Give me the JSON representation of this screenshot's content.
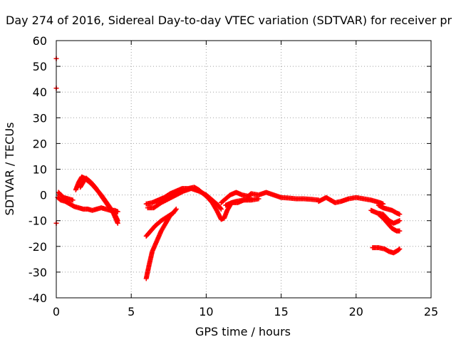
{
  "chart_data": {
    "type": "scatter",
    "title": "Day 274 of 2016, Sidereal Day-to-day VTEC variation (SDTVAR) for receiver pr",
    "xlabel": "GPS time / hours",
    "ylabel": "SDTVAR / TECUs",
    "xlim": [
      0,
      25
    ],
    "ylim": [
      -40,
      60
    ],
    "xticks": [
      0,
      5,
      10,
      15,
      20,
      25
    ],
    "yticks": [
      -40,
      -30,
      -20,
      -10,
      0,
      10,
      20,
      30,
      40,
      50,
      60
    ],
    "grid": true,
    "marker": "+",
    "series_color": "#ff0000",
    "series": [
      {
        "name": "isolated",
        "points": [
          [
            0.0,
            53
          ],
          [
            0.0,
            41.5
          ],
          [
            0.0,
            -11
          ]
        ]
      },
      {
        "name": "seg_a",
        "points": [
          [
            0.1,
            -1
          ],
          [
            0.3,
            -2
          ],
          [
            0.6,
            -2.5
          ],
          [
            0.9,
            -3.5
          ],
          [
            1.2,
            -4.5
          ],
          [
            1.5,
            -5
          ],
          [
            1.8,
            -5.5
          ],
          [
            2.1,
            -5.5
          ],
          [
            2.4,
            -6
          ],
          [
            2.7,
            -5.5
          ],
          [
            3.0,
            -5
          ],
          [
            3.3,
            -5.5
          ],
          [
            3.6,
            -6
          ],
          [
            3.9,
            -6
          ],
          [
            4.1,
            -6.5
          ]
        ]
      },
      {
        "name": "seg_b",
        "points": [
          [
            0.15,
            1
          ],
          [
            0.3,
            0
          ],
          [
            0.5,
            -1
          ],
          [
            0.8,
            -1.5
          ],
          [
            1.1,
            -2
          ]
        ]
      },
      {
        "name": "seg_c",
        "points": [
          [
            1.3,
            2
          ],
          [
            1.5,
            5
          ],
          [
            1.7,
            7
          ],
          [
            1.9,
            6.5
          ],
          [
            2.1,
            5.5
          ],
          [
            2.4,
            4
          ],
          [
            2.7,
            2
          ],
          [
            3.0,
            0
          ],
          [
            3.3,
            -2.5
          ],
          [
            3.6,
            -5
          ],
          [
            3.9,
            -7.5
          ],
          [
            4.1,
            -10
          ]
        ]
      },
      {
        "name": "seg_d",
        "points": [
          [
            1.6,
            3
          ],
          [
            1.8,
            5
          ],
          [
            2.0,
            6.5
          ],
          [
            2.3,
            5
          ],
          [
            2.6,
            3
          ],
          [
            2.9,
            0.5
          ],
          [
            3.2,
            -2
          ],
          [
            3.5,
            -4.5
          ],
          [
            3.8,
            -7
          ],
          [
            4.1,
            -11
          ]
        ]
      },
      {
        "name": "seg_e",
        "points": [
          [
            6.0,
            -3.5
          ],
          [
            6.4,
            -3
          ],
          [
            6.8,
            -2
          ],
          [
            7.2,
            -1
          ],
          [
            7.6,
            0.5
          ],
          [
            8.0,
            1.5
          ],
          [
            8.4,
            2.5
          ],
          [
            8.8,
            2.5
          ],
          [
            9.2,
            3
          ],
          [
            9.5,
            2
          ],
          [
            9.8,
            0.5
          ],
          [
            10.1,
            -1
          ],
          [
            10.4,
            -3
          ],
          [
            10.7,
            -6
          ],
          [
            11.0,
            -9.5
          ],
          [
            11.2,
            -9
          ],
          [
            11.4,
            -6
          ],
          [
            11.7,
            -3
          ],
          [
            12.0,
            -2.5
          ],
          [
            12.5,
            -2
          ],
          [
            13.0,
            -1.5
          ]
        ]
      },
      {
        "name": "seg_f",
        "points": [
          [
            6.0,
            -16
          ],
          [
            6.3,
            -14
          ],
          [
            6.6,
            -12
          ],
          [
            7.0,
            -10
          ],
          [
            7.4,
            -8.5
          ],
          [
            7.8,
            -7
          ],
          [
            8.0,
            -5.5
          ]
        ]
      },
      {
        "name": "seg_g",
        "points": [
          [
            6.0,
            -32.5
          ],
          [
            6.2,
            -27
          ],
          [
            6.4,
            -22
          ],
          [
            6.7,
            -18
          ],
          [
            7.0,
            -14
          ],
          [
            7.3,
            -11
          ],
          [
            7.6,
            -8
          ],
          [
            7.8,
            -7
          ]
        ]
      },
      {
        "name": "seg_h",
        "points": [
          [
            6.1,
            -5
          ],
          [
            6.5,
            -5
          ],
          [
            7.0,
            -3
          ],
          [
            7.5,
            -1.5
          ],
          [
            8.0,
            0
          ],
          [
            8.5,
            1.5
          ],
          [
            9.0,
            2.5
          ],
          [
            9.5,
            1.5
          ],
          [
            10.0,
            0
          ],
          [
            10.4,
            -2
          ],
          [
            10.8,
            -4
          ],
          [
            11.0,
            -5.5
          ]
        ]
      },
      {
        "name": "seg_i",
        "points": [
          [
            11.0,
            -3
          ],
          [
            11.3,
            -1.5
          ],
          [
            11.6,
            0
          ],
          [
            12.0,
            1
          ],
          [
            12.4,
            0
          ],
          [
            12.8,
            -0.5
          ],
          [
            13.0,
            0.5
          ],
          [
            13.5,
            0
          ],
          [
            14.0,
            1
          ],
          [
            14.5,
            0
          ],
          [
            15.0,
            -1
          ],
          [
            15.5,
            -1.2
          ],
          [
            16.0,
            -1.5
          ],
          [
            16.5,
            -1.5
          ],
          [
            17.0,
            -1.7
          ],
          [
            17.5,
            -2
          ]
        ]
      },
      {
        "name": "seg_j",
        "points": [
          [
            11.3,
            -4
          ],
          [
            11.7,
            -3
          ],
          [
            12.1,
            -3
          ],
          [
            12.5,
            -2
          ],
          [
            13.0,
            -2
          ],
          [
            13.5,
            -1.5
          ]
        ]
      },
      {
        "name": "seg_k",
        "points": [
          [
            17.5,
            -2.5
          ],
          [
            18.0,
            -1
          ],
          [
            18.3,
            -2
          ],
          [
            18.6,
            -3
          ],
          [
            19.0,
            -2.5
          ],
          [
            19.5,
            -1.5
          ],
          [
            20.0,
            -1
          ],
          [
            20.5,
            -1.5
          ],
          [
            21.0,
            -2
          ],
          [
            21.3,
            -2.5
          ],
          [
            21.6,
            -3
          ],
          [
            21.8,
            -3.5
          ]
        ]
      },
      {
        "name": "seg_l",
        "points": [
          [
            21.0,
            -6
          ],
          [
            21.4,
            -7
          ],
          [
            21.8,
            -7.5
          ],
          [
            22.2,
            -10
          ],
          [
            22.5,
            -11
          ],
          [
            22.9,
            -10
          ]
        ]
      },
      {
        "name": "seg_m",
        "points": [
          [
            21.5,
            -4
          ],
          [
            21.8,
            -5
          ],
          [
            22.1,
            -5.5
          ],
          [
            22.4,
            -6
          ],
          [
            22.7,
            -7
          ],
          [
            22.9,
            -7.5
          ]
        ]
      },
      {
        "name": "seg_n",
        "points": [
          [
            21.5,
            -7.5
          ],
          [
            21.8,
            -9
          ],
          [
            22.1,
            -11
          ],
          [
            22.4,
            -13
          ],
          [
            22.7,
            -14
          ],
          [
            22.9,
            -14
          ]
        ]
      },
      {
        "name": "seg_o",
        "points": [
          [
            21.1,
            -20.5
          ],
          [
            21.5,
            -20.5
          ],
          [
            21.9,
            -21
          ],
          [
            22.2,
            -22
          ],
          [
            22.5,
            -22.5
          ],
          [
            22.8,
            -21.5
          ],
          [
            22.9,
            -21
          ]
        ]
      }
    ]
  }
}
